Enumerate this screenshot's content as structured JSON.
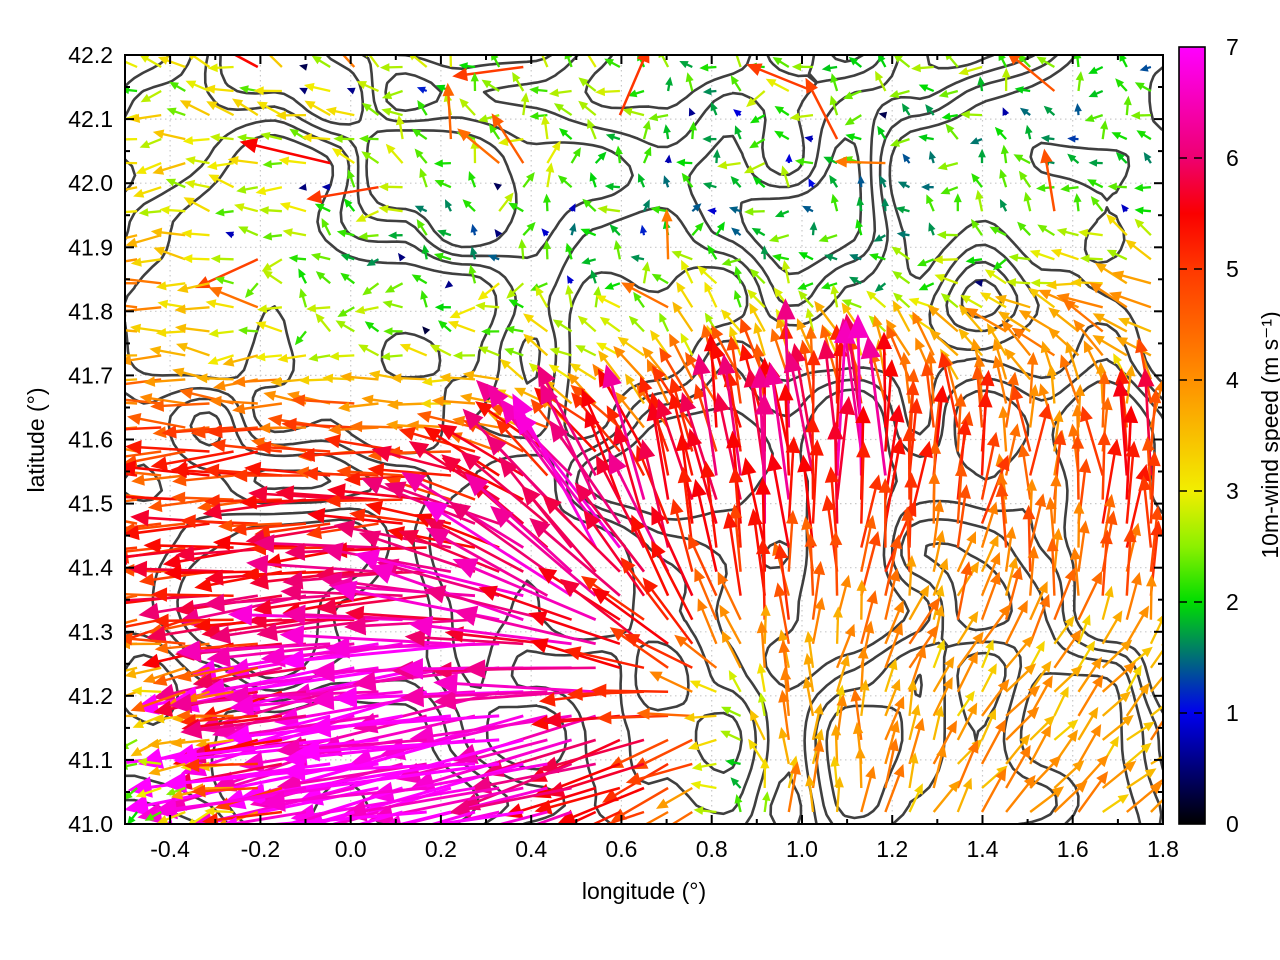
{
  "figure": {
    "background": "#ffffff",
    "plot_border_color": "#000000"
  },
  "chart_data": {
    "type": "quiver",
    "title": "",
    "xlabel": "longitude (°)",
    "ylabel": "latitude (°)",
    "xlim": [
      -0.5,
      1.8
    ],
    "ylim": [
      41.0,
      42.2
    ],
    "xticks": {
      "values": [
        -0.4,
        -0.2,
        0.0,
        0.2,
        0.4,
        0.6,
        0.8,
        1.0,
        1.2,
        1.4,
        1.6,
        1.8
      ],
      "labels": [
        "-0.4",
        "-0.2",
        "0.0",
        "0.2",
        "0.4",
        "0.6",
        "0.8",
        "1.0",
        "1.2",
        "1.4",
        "1.6",
        "1.8"
      ],
      "minor_step": 0.1
    },
    "yticks": {
      "values": [
        41.0,
        41.1,
        41.2,
        41.3,
        41.4,
        41.5,
        41.6,
        41.7,
        41.8,
        41.9,
        42.0,
        42.1,
        42.2
      ],
      "labels": [
        "41.0",
        "41.1",
        "41.2",
        "41.3",
        "41.4",
        "41.5",
        "41.6",
        "41.7",
        "41.8",
        "41.9",
        "42.0",
        "42.1",
        "42.2"
      ],
      "minor_step": 0.05
    },
    "grid": {
      "show": true,
      "style": "dotted",
      "color": "#c9c9c9"
    },
    "colorbar": {
      "label": "10m-wind speed (m s⁻¹)",
      "min": 0,
      "max": 7,
      "ticks": [
        0,
        1,
        2,
        3,
        4,
        5,
        6,
        7
      ],
      "tick_labels": [
        "0",
        "1",
        "2",
        "3",
        "4",
        "5",
        "6",
        "7"
      ],
      "stops": [
        [
          0,
          "#000000"
        ],
        [
          1,
          "#0000ee"
        ],
        [
          2,
          "#00dd00"
        ],
        [
          2.5,
          "#8cf000"
        ],
        [
          3,
          "#f2ee00"
        ],
        [
          4,
          "#ff9000"
        ],
        [
          5,
          "#ff3800"
        ],
        [
          5.5,
          "#fa0000"
        ],
        [
          6,
          "#ee0070"
        ],
        [
          7,
          "#ff00ff"
        ]
      ]
    },
    "contours": {
      "color": "#3f3f3f",
      "linewidth": 2.6,
      "description": "dark-gray terrain/elevation contour lines, irregular closed curves, denser in the southern half"
    },
    "wind_field": {
      "units": "m s⁻¹",
      "dir_convention": "math degrees: 0 = east (right), 90 = north (up); arrows point downwind",
      "arrow_spacing_deg": {
        "lon": 0.053,
        "lat": 0.037
      },
      "grid_lon": [
        -0.45,
        -0.25,
        -0.05,
        0.15,
        0.35,
        0.55,
        0.75,
        0.95,
        1.15,
        1.35,
        1.55,
        1.75
      ],
      "grid_lat": [
        41.05,
        41.15,
        41.25,
        41.35,
        41.45,
        41.55,
        41.65,
        41.75,
        41.85,
        41.95,
        42.05,
        42.15
      ],
      "cells_speed_dir": [
        [
          [
            2.5,
            195
          ],
          [
            3.5,
            192
          ],
          [
            7.0,
            192
          ],
          [
            7.0,
            190
          ],
          [
            7.0,
            192
          ],
          [
            6.0,
            200
          ],
          [
            4.5,
            205
          ],
          [
            3.8,
            90
          ],
          [
            3.8,
            80
          ],
          [
            3.8,
            55
          ],
          [
            3.8,
            48
          ],
          [
            3.8,
            45
          ]
        ],
        [
          [
            3.0,
            190
          ],
          [
            4.5,
            192
          ],
          [
            7.0,
            192
          ],
          [
            7.0,
            190
          ],
          [
            7.0,
            188
          ],
          [
            6.5,
            195
          ],
          [
            4.8,
            200
          ],
          [
            3.8,
            90
          ],
          [
            3.8,
            85
          ],
          [
            3.8,
            60
          ],
          [
            3.8,
            50
          ],
          [
            3.8,
            45
          ]
        ],
        [
          [
            4.0,
            187
          ],
          [
            5.0,
            189
          ],
          [
            6.5,
            190
          ],
          [
            6.8,
            188
          ],
          [
            6.5,
            185
          ],
          [
            6.2,
            175
          ],
          [
            5.0,
            140
          ],
          [
            4.0,
            90
          ],
          [
            3.8,
            75
          ],
          [
            3.8,
            60
          ],
          [
            3.8,
            55
          ],
          [
            3.8,
            50
          ]
        ],
        [
          [
            5.0,
            183
          ],
          [
            5.5,
            185
          ],
          [
            6.0,
            186
          ],
          [
            6.0,
            183
          ],
          [
            6.5,
            165
          ],
          [
            6.5,
            140
          ],
          [
            5.5,
            115
          ],
          [
            5.0,
            95
          ],
          [
            4.5,
            78
          ],
          [
            4.2,
            70
          ],
          [
            4.2,
            80
          ],
          [
            4.5,
            85
          ]
        ],
        [
          [
            5.0,
            181
          ],
          [
            5.2,
            182
          ],
          [
            5.5,
            183
          ],
          [
            5.5,
            180
          ],
          [
            6.0,
            152
          ],
          [
            6.5,
            122
          ],
          [
            5.8,
            102
          ],
          [
            5.5,
            95
          ],
          [
            5.0,
            86
          ],
          [
            4.5,
            80
          ],
          [
            4.5,
            85
          ],
          [
            5.0,
            90
          ]
        ],
        [
          [
            4.8,
            180
          ],
          [
            5.0,
            181
          ],
          [
            5.0,
            182
          ],
          [
            5.2,
            178
          ],
          [
            5.5,
            152
          ],
          [
            6.0,
            122
          ],
          [
            5.5,
            102
          ],
          [
            6.0,
            95
          ],
          [
            6.3,
            90
          ],
          [
            5.0,
            86
          ],
          [
            4.5,
            90
          ],
          [
            5.3,
            95
          ]
        ],
        [
          [
            4.5,
            178
          ],
          [
            4.8,
            180
          ],
          [
            4.5,
            180
          ],
          [
            4.0,
            176
          ],
          [
            3.6,
            162
          ],
          [
            4.0,
            142
          ],
          [
            4.5,
            120
          ],
          [
            5.5,
            96
          ],
          [
            5.0,
            90
          ],
          [
            4.5,
            95
          ],
          [
            4.2,
            98
          ],
          [
            4.5,
            85
          ]
        ],
        [
          [
            3.5,
            180
          ],
          [
            3.0,
            176
          ],
          [
            2.6,
            170
          ],
          [
            2.5,
            165
          ],
          [
            2.8,
            160
          ],
          [
            3.0,
            150
          ],
          [
            3.2,
            130
          ],
          [
            3.5,
            112
          ],
          [
            3.5,
            122
          ],
          [
            4.0,
            135
          ],
          [
            4.0,
            150
          ],
          [
            4.2,
            150
          ]
        ],
        [
          [
            4.5,
            180
          ],
          [
            2.5,
            172
          ],
          [
            2.0,
            152
          ],
          [
            2.2,
            160
          ],
          [
            2.5,
            170
          ],
          [
            2.0,
            142
          ],
          [
            2.5,
            122
          ],
          [
            2.2,
            150
          ],
          [
            2.0,
            158
          ],
          [
            2.5,
            168
          ],
          [
            3.0,
            165
          ],
          [
            3.5,
            160
          ]
        ],
        [
          [
            3.0,
            176
          ],
          [
            2.8,
            166
          ],
          [
            2.5,
            178
          ],
          [
            2.2,
            170
          ],
          [
            2.5,
            85
          ],
          [
            2.2,
            120
          ],
          [
            1.8,
            102
          ],
          [
            2.0,
            140
          ],
          [
            1.6,
            158
          ],
          [
            2.0,
            150
          ],
          [
            2.5,
            158
          ],
          [
            2.3,
            150
          ]
        ],
        [
          [
            3.5,
            184
          ],
          [
            3.0,
            180
          ],
          [
            2.8,
            170
          ],
          [
            2.5,
            152
          ],
          [
            2.8,
            140
          ],
          [
            2.5,
            102
          ],
          [
            2.2,
            130
          ],
          [
            2.5,
            150
          ],
          [
            1.8,
            142
          ],
          [
            2.0,
            150
          ],
          [
            1.6,
            132
          ],
          [
            2.0,
            142
          ]
        ],
        [
          [
            2.5,
            170
          ],
          [
            2.8,
            162
          ],
          [
            3.0,
            152
          ],
          [
            2.5,
            142
          ],
          [
            2.2,
            132
          ],
          [
            2.5,
            122
          ],
          [
            2.0,
            150
          ],
          [
            2.5,
            160
          ],
          [
            2.2,
            152
          ],
          [
            2.5,
            156
          ],
          [
            2.0,
            146
          ],
          [
            1.8,
            150
          ]
        ]
      ]
    }
  }
}
